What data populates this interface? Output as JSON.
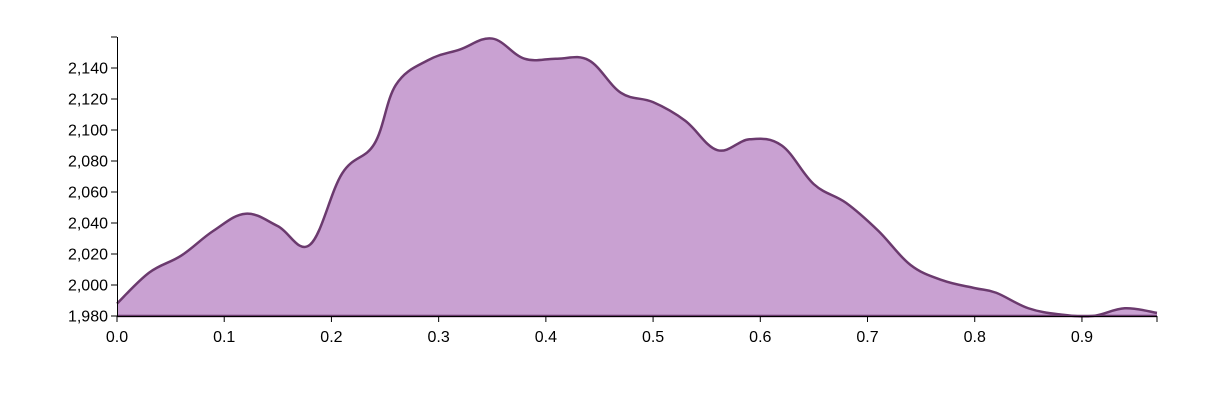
{
  "chart_data": {
    "type": "area",
    "title": "",
    "xlabel": "",
    "ylabel": "",
    "xlim": [
      0,
      0.97
    ],
    "ylim": [
      1980,
      2160
    ],
    "grid": false,
    "x_ticks": [
      0,
      0.1,
      0.2,
      0.3,
      0.4,
      0.5,
      0.6,
      0.7,
      0.8,
      0.9
    ],
    "x_tick_labels": [
      "0.0",
      "0.1",
      "0.2",
      "0.3",
      "0.4",
      "0.5",
      "0.6",
      "0.7",
      "0.8",
      "0.9"
    ],
    "y_ticks": [
      1980,
      2000,
      2020,
      2040,
      2060,
      2080,
      2100,
      2120,
      2140
    ],
    "y_tick_labels": [
      "1,980",
      "2,000",
      "2,020",
      "2,040",
      "2,060",
      "2,080",
      "2,100",
      "2,120",
      "2,140"
    ],
    "series": [
      {
        "x": [
          0,
          0.03,
          0.06,
          0.09,
          0.12,
          0.15,
          0.18,
          0.21,
          0.24,
          0.26,
          0.29,
          0.32,
          0.35,
          0.38,
          0.41,
          0.44,
          0.47,
          0.5,
          0.53,
          0.56,
          0.59,
          0.62,
          0.65,
          0.68,
          0.71,
          0.74,
          0.77,
          0.8,
          0.82,
          0.85,
          0.88,
          0.91,
          0.94,
          0.97
        ],
        "y": [
          1988,
          2008,
          2019,
          2035,
          2046,
          2038,
          2026,
          2072,
          2091,
          2129,
          2145,
          2152,
          2159,
          2146,
          2146,
          2145,
          2124,
          2118,
          2106,
          2087,
          2094,
          2090,
          2065,
          2053,
          2035,
          2013,
          2003,
          1998,
          1995,
          1985,
          1981,
          1980,
          1985,
          1982
        ]
      }
    ],
    "colors": {
      "fill": "#c9a1d2",
      "stroke": "#6b3a6e",
      "axis": "#000000"
    }
  }
}
